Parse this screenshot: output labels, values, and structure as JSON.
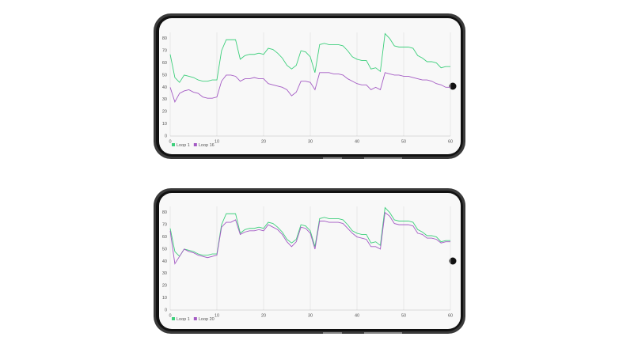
{
  "chart_data": [
    {
      "type": "line",
      "x": [
        0,
        1,
        2,
        3,
        4,
        5,
        6,
        7,
        8,
        9,
        10,
        11,
        12,
        13,
        14,
        15,
        16,
        17,
        18,
        19,
        20,
        21,
        22,
        23,
        24,
        25,
        26,
        27,
        28,
        29,
        30,
        31,
        32,
        33,
        34,
        35,
        36,
        37,
        38,
        39,
        40,
        41,
        42,
        43,
        44,
        45,
        46,
        47,
        48,
        49,
        50,
        51,
        52,
        53,
        54,
        55,
        56,
        57,
        58,
        59,
        60
      ],
      "series": [
        {
          "name": "Loop 1",
          "color": "#3ecf7c",
          "values": [
            67,
            48,
            44,
            50,
            49,
            48,
            46,
            45,
            45,
            46,
            46,
            70,
            79,
            79,
            79,
            63,
            66,
            67,
            67,
            68,
            67,
            72,
            71,
            68,
            64,
            58,
            55,
            58,
            70,
            69,
            65,
            52,
            75,
            76,
            75,
            75,
            75,
            74,
            70,
            65,
            63,
            62,
            62,
            55,
            56,
            53,
            84,
            80,
            74,
            73,
            73,
            73,
            72,
            66,
            64,
            61,
            61,
            60,
            56,
            57,
            57
          ]
        },
        {
          "name": "Loop 16",
          "color": "#a45bc4",
          "values": [
            40,
            28,
            35,
            37,
            38,
            36,
            35,
            32,
            31,
            31,
            32,
            45,
            50,
            50,
            49,
            45,
            47,
            47,
            48,
            47,
            47,
            43,
            42,
            41,
            40,
            38,
            33,
            36,
            45,
            45,
            44,
            38,
            52,
            52,
            52,
            51,
            51,
            50,
            47,
            45,
            43,
            42,
            42,
            38,
            40,
            38,
            52,
            51,
            50,
            50,
            49,
            49,
            48,
            47,
            46,
            46,
            45,
            43,
            42,
            40,
            40
          ]
        }
      ],
      "xlim": [
        0,
        60
      ],
      "xticks": [
        0,
        10,
        20,
        30,
        40,
        50,
        60
      ],
      "ylim": [
        0,
        85
      ],
      "yticks": [
        0,
        10,
        20,
        30,
        40,
        50,
        60,
        70,
        80
      ],
      "grid": true
    },
    {
      "type": "line",
      "x": [
        0,
        1,
        2,
        3,
        4,
        5,
        6,
        7,
        8,
        9,
        10,
        11,
        12,
        13,
        14,
        15,
        16,
        17,
        18,
        19,
        20,
        21,
        22,
        23,
        24,
        25,
        26,
        27,
        28,
        29,
        30,
        31,
        32,
        33,
        34,
        35,
        36,
        37,
        38,
        39,
        40,
        41,
        42,
        43,
        44,
        45,
        46,
        47,
        48,
        49,
        50,
        51,
        52,
        53,
        54,
        55,
        56,
        57,
        58,
        59,
        60
      ],
      "series": [
        {
          "name": "Loop 1",
          "color": "#3ecf7c",
          "values": [
            67,
            48,
            44,
            50,
            49,
            48,
            46,
            45,
            45,
            46,
            46,
            70,
            79,
            79,
            79,
            63,
            66,
            67,
            67,
            68,
            67,
            72,
            71,
            68,
            64,
            58,
            55,
            58,
            70,
            69,
            65,
            52,
            75,
            76,
            75,
            75,
            75,
            74,
            70,
            65,
            63,
            62,
            62,
            55,
            56,
            53,
            84,
            80,
            74,
            73,
            73,
            73,
            72,
            66,
            64,
            61,
            61,
            60,
            56,
            57,
            57
          ]
        },
        {
          "name": "Loop 20",
          "color": "#a45bc4",
          "values": [
            65,
            38,
            44,
            50,
            48,
            47,
            45,
            44,
            43,
            44,
            45,
            68,
            72,
            72,
            74,
            62,
            64,
            65,
            65,
            66,
            65,
            70,
            68,
            66,
            62,
            56,
            52,
            56,
            68,
            67,
            63,
            50,
            73,
            73,
            72,
            72,
            72,
            71,
            67,
            63,
            60,
            59,
            58,
            52,
            52,
            50,
            80,
            77,
            71,
            70,
            70,
            70,
            69,
            63,
            62,
            59,
            59,
            58,
            55,
            56,
            56
          ]
        }
      ],
      "xlim": [
        0,
        60
      ],
      "xticks": [
        0,
        10,
        20,
        30,
        40,
        50,
        60
      ],
      "ylim": [
        0,
        85
      ],
      "yticks": [
        0,
        10,
        20,
        30,
        40,
        50,
        60,
        70,
        80
      ],
      "grid": true
    }
  ]
}
